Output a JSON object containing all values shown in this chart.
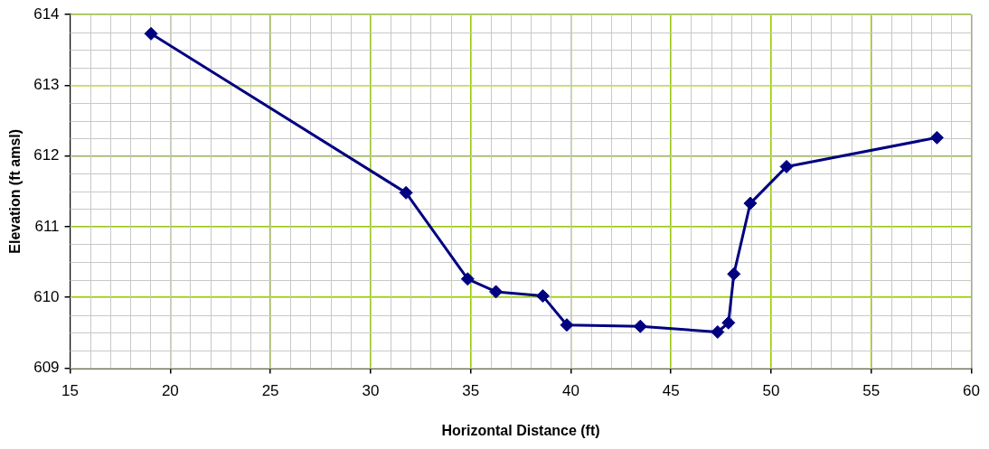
{
  "chart_data": {
    "type": "line",
    "xlabel": "Horizontal Distance (ft)",
    "ylabel": "Elevation (ft amsl)",
    "x": [
      19.04,
      31.77,
      34.85,
      36.26,
      38.6,
      39.8,
      43.47,
      47.33,
      47.87,
      48.14,
      48.96,
      50.77,
      58.28
    ],
    "series": [
      {
        "color": "#000080",
        "values": [
          613.73,
          611.48,
          610.26,
          610.08,
          610.02,
          609.61,
          609.59,
          609.51,
          609.64,
          610.33,
          611.33,
          611.85,
          612.26
        ]
      }
    ],
    "xlim": [
      15,
      60
    ],
    "xticks": [
      15,
      20,
      25,
      30,
      35,
      40,
      45,
      50,
      55,
      60
    ],
    "ylim": [
      609,
      614
    ],
    "yticks": [
      609,
      610,
      611,
      612,
      613,
      614
    ],
    "grid": true,
    "legend": false,
    "marker": "diamond",
    "line_style": "solid"
  }
}
